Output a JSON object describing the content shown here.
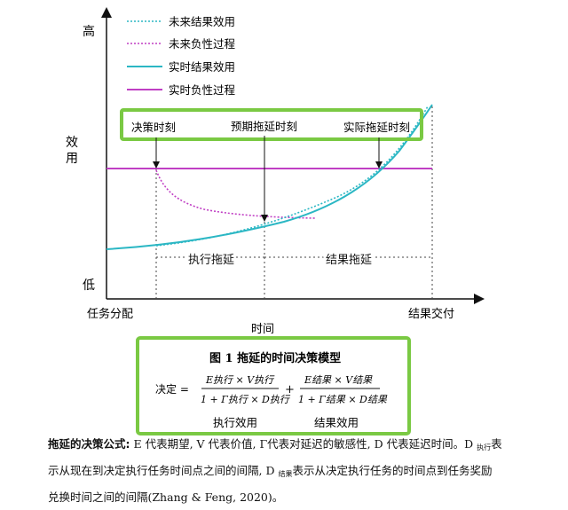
{
  "chart_data": {
    "type": "line",
    "title": "",
    "xlabel": "时间",
    "ylabel": "效用",
    "y_high_label": "高",
    "y_low_label": "低",
    "x_start_label": "任务分配",
    "x_end_label": "结果交付",
    "legend": [
      {
        "name": "未来结果效用",
        "color": "#2bb7c4",
        "style": "dotted"
      },
      {
        "name": "未来负性过程",
        "color": "#c03fc4",
        "style": "dotted"
      },
      {
        "name": "实时结果效用",
        "color": "#2bb7c4",
        "style": "solid"
      },
      {
        "name": "实时负性过程",
        "color": "#c03fc4",
        "style": "solid"
      }
    ],
    "annotations": {
      "decision_moment": "决策时刻",
      "expected_delay_moment": "预期拖延时刻",
      "actual_delay_moment": "实际拖延时刻",
      "execution_delay": "执行拖延",
      "result_delay": "结果拖延"
    },
    "colors": {
      "cyan": "#2bb7c4",
      "magenta": "#c03fc4",
      "highlight": "#7ac943"
    }
  },
  "figure": {
    "caption": "图 1  拖延的时间决策模型",
    "formula_label": "决定 =",
    "term1_num": "E执行 × V执行",
    "term1_den": "1 + Γ执行 × D执行",
    "plus": "+",
    "term2_num": "E结果 × V结果",
    "term2_den": "1 + Γ结果 × D结果",
    "label1": "执行效用",
    "label2": "结果效用"
  },
  "body": {
    "bold_lead": "拖延的决策公式:",
    "line1_rest": " E 代表期望, V 代表价值, Γ代表对延迟的敏感性, D 代表延迟时间。D ",
    "sub_exec": "执行",
    "line1_tail": "表",
    "line2_a": "示从现在到决定执行任务时间点之间的间隔, D ",
    "sub_result": "结果",
    "line2_b": "表示从决定执行任务的时间点到任务奖励",
    "line3": "兑换时间之间的间隔(Zhang & Feng, 2020)。"
  }
}
